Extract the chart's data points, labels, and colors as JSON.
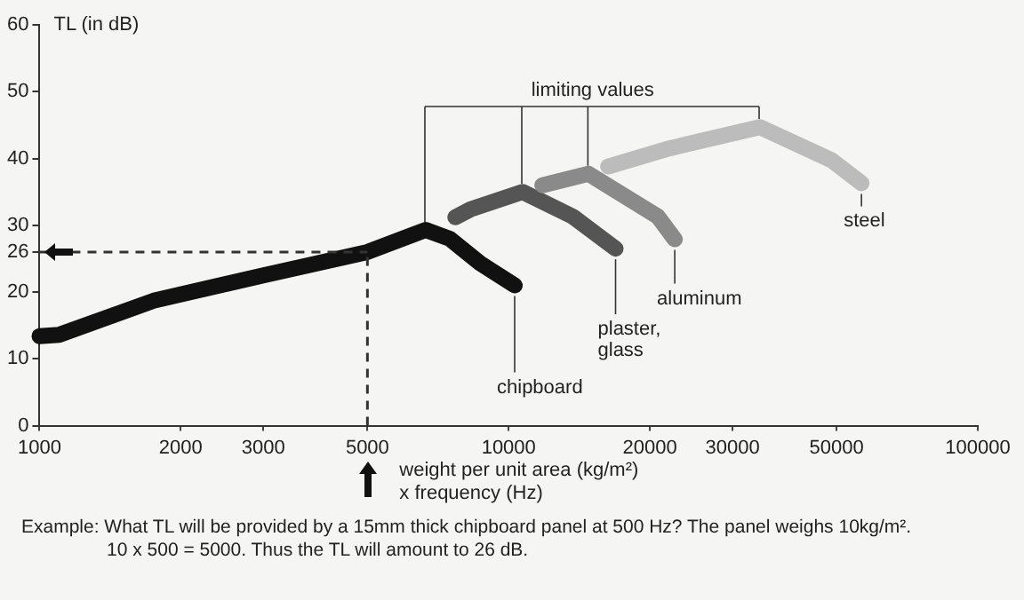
{
  "chart_data": {
    "type": "line",
    "ylabel": "TL (in dB)",
    "xlabel": "weight per unit area (kg/m²) x frequency (Hz)",
    "log": "x",
    "xlim": [
      1000,
      100000
    ],
    "xticks": [
      1000,
      2000,
      3000,
      5000,
      10000,
      20000,
      30000,
      50000,
      100000
    ],
    "ylim": [
      0,
      60
    ],
    "yticks": [
      0,
      10,
      20,
      26,
      30,
      40,
      50,
      60
    ],
    "grid": false,
    "legend": false,
    "series": [
      {
        "name": "chipboard",
        "color": "#111111",
        "x": [
          1000,
          1100,
          1750,
          3000,
          5000,
          6650,
          7480,
          8700,
          10300
        ],
        "values": [
          13.4,
          13.6,
          18.7,
          22.5,
          26,
          29.3,
          28,
          24.3,
          21
        ]
      },
      {
        "name": "plaster, glass",
        "color": "#555555",
        "x": [
          7700,
          8300,
          10700,
          13700,
          16900
        ],
        "values": [
          31.2,
          32.4,
          35,
          31.3,
          26.5
        ]
      },
      {
        "name": "aluminum",
        "color": "#8a8a8a",
        "x": [
          11800,
          14800,
          20800,
          22600
        ],
        "values": [
          36,
          37.7,
          31.3,
          27.9
        ]
      },
      {
        "name": "steel",
        "color": "#bcbcbc",
        "x": [
          16300,
          22000,
          34300,
          48900,
          56500
        ],
        "values": [
          38.8,
          41.5,
          44.7,
          39.7,
          36.3
        ]
      }
    ],
    "ref_lines": [
      {
        "axis": "y",
        "value": 26,
        "line_style": "dashed",
        "color": "#333333"
      },
      {
        "axis": "x",
        "value": 5000,
        "line_style": "dashed",
        "color": "#333333"
      }
    ],
    "annotations": [
      "limiting values",
      "Example: What TL will be provided by a 15mm thick chipboard panel at 500 Hz? The panel weighs 10kg/m². 10 x 500 = 5000. Thus the TL will amount to 26 dB."
    ]
  }
}
